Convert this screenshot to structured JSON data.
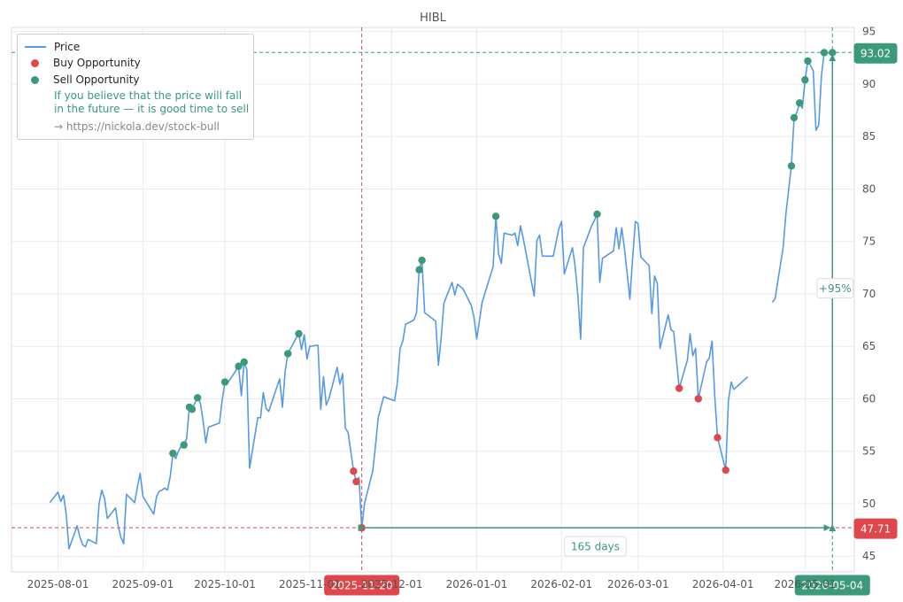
{
  "chart_data": {
    "type": "line",
    "title": "HIBL",
    "xlabel": "",
    "ylabel": "",
    "ylim": [
      43.5,
      95.4
    ],
    "xlim": [
      "2025-07-15",
      "2026-05-19"
    ],
    "y_ticks": [
      45,
      50,
      55,
      60,
      65,
      70,
      75,
      80,
      85,
      90,
      95
    ],
    "x_ticks": [
      "2025-08-01",
      "2025-09-01",
      "2025-10-01",
      "2025-11-01",
      "2025-12-01",
      "2026-01-01",
      "2026-02-01",
      "2026-03-01",
      "2026-04-01",
      "2026-05-01"
    ],
    "grid": true,
    "legend_position": "top-left",
    "series": [
      {
        "name": "Price",
        "color": "#5599e8",
        "points": [
          [
            "2025-07-29",
            50.1
          ],
          [
            "2025-08-01",
            51.1
          ],
          [
            "2025-08-02",
            50.2
          ],
          [
            "2025-08-03",
            50.8
          ],
          [
            "2025-08-04",
            49.0
          ],
          [
            "2025-08-05",
            45.7
          ],
          [
            "2025-08-08",
            47.9
          ],
          [
            "2025-08-09",
            46.8
          ],
          [
            "2025-08-10",
            46.1
          ],
          [
            "2025-08-11",
            45.9
          ],
          [
            "2025-08-12",
            46.6
          ],
          [
            "2025-08-15",
            46.2
          ],
          [
            "2025-08-16",
            50.0
          ],
          [
            "2025-08-17",
            51.3
          ],
          [
            "2025-08-18",
            50.5
          ],
          [
            "2025-08-19",
            48.6
          ],
          [
            "2025-08-22",
            49.6
          ],
          [
            "2025-08-23",
            47.9
          ],
          [
            "2025-08-24",
            46.8
          ],
          [
            "2025-08-25",
            46.2
          ],
          [
            "2025-08-26",
            50.9
          ],
          [
            "2025-08-29",
            50.1
          ],
          [
            "2025-08-30",
            51.6
          ],
          [
            "2025-08-31",
            52.9
          ],
          [
            "2025-09-01",
            50.7
          ],
          [
            "2025-09-05",
            49.0
          ],
          [
            "2025-09-06",
            50.7
          ],
          [
            "2025-09-07",
            51.2
          ],
          [
            "2025-09-08",
            51.3
          ],
          [
            "2025-09-09",
            51.5
          ],
          [
            "2025-09-10",
            51.3
          ],
          [
            "2025-09-11",
            52.6
          ],
          [
            "2025-09-12",
            54.8
          ],
          [
            "2025-09-13",
            54.3
          ],
          [
            "2025-09-14",
            55.0
          ],
          [
            "2025-09-15",
            55.5
          ],
          [
            "2025-09-16",
            55.6
          ],
          [
            "2025-09-17",
            56.2
          ],
          [
            "2025-09-18",
            59.2
          ],
          [
            "2025-09-19",
            59.0
          ],
          [
            "2025-09-20",
            59.6
          ],
          [
            "2025-09-21",
            60.1
          ],
          [
            "2025-09-22",
            59.6
          ],
          [
            "2025-09-23",
            57.9
          ],
          [
            "2025-09-24",
            55.8
          ],
          [
            "2025-09-25",
            57.3
          ],
          [
            "2025-09-29",
            57.7
          ],
          [
            "2025-09-30",
            59.9
          ],
          [
            "2025-10-01",
            61.6
          ],
          [
            "2025-10-02",
            61.5
          ],
          [
            "2025-10-05",
            62.7
          ],
          [
            "2025-10-06",
            63.1
          ],
          [
            "2025-10-07",
            60.3
          ],
          [
            "2025-10-08",
            63.5
          ],
          [
            "2025-10-09",
            62.8
          ],
          [
            "2025-10-10",
            53.4
          ],
          [
            "2025-10-13",
            58.2
          ],
          [
            "2025-10-14",
            58.2
          ],
          [
            "2025-10-15",
            60.6
          ],
          [
            "2025-10-16",
            59.1
          ],
          [
            "2025-10-17",
            58.8
          ],
          [
            "2025-10-21",
            61.9
          ],
          [
            "2025-10-22",
            59.2
          ],
          [
            "2025-10-23",
            62.6
          ],
          [
            "2025-10-24",
            64.3
          ],
          [
            "2025-10-27",
            65.8
          ],
          [
            "2025-10-28",
            66.2
          ],
          [
            "2025-10-29",
            64.7
          ],
          [
            "2025-10-30",
            66.1
          ],
          [
            "2025-10-31",
            63.8
          ],
          [
            "2025-11-01",
            65.0
          ],
          [
            "2025-11-04",
            65.1
          ],
          [
            "2025-11-05",
            59.0
          ],
          [
            "2025-11-06",
            62.1
          ],
          [
            "2025-11-07",
            59.4
          ],
          [
            "2025-11-08",
            60.0
          ],
          [
            "2025-11-11",
            63.0
          ],
          [
            "2025-11-12",
            61.4
          ],
          [
            "2025-11-13",
            62.4
          ],
          [
            "2025-11-14",
            57.2
          ],
          [
            "2025-11-15",
            56.8
          ],
          [
            "2025-11-17",
            53.1
          ],
          [
            "2025-11-18",
            52.1
          ],
          [
            "2025-11-19",
            52.5
          ],
          [
            "2025-11-20",
            47.7
          ],
          [
            "2025-11-21",
            50.0
          ],
          [
            "2025-11-24",
            53.1
          ],
          [
            "2025-11-25",
            55.5
          ],
          [
            "2025-11-26",
            58.2
          ],
          [
            "2025-11-28",
            60.2
          ],
          [
            "2025-12-02",
            59.8
          ],
          [
            "2025-12-03",
            61.5
          ],
          [
            "2025-12-04",
            64.8
          ],
          [
            "2025-12-05",
            65.5
          ],
          [
            "2025-12-06",
            67.1
          ],
          [
            "2025-12-09",
            67.5
          ],
          [
            "2025-12-10",
            68.2
          ],
          [
            "2025-12-11",
            72.3
          ],
          [
            "2025-12-12",
            73.2
          ],
          [
            "2025-12-13",
            68.2
          ],
          [
            "2025-12-17",
            67.4
          ],
          [
            "2025-12-18",
            63.2
          ],
          [
            "2025-12-19",
            65.8
          ],
          [
            "2025-12-20",
            69.1
          ],
          [
            "2025-12-23",
            71.1
          ],
          [
            "2025-12-24",
            69.9
          ],
          [
            "2025-12-25",
            70.9
          ],
          [
            "2025-12-27",
            70.5
          ],
          [
            "2025-12-30",
            68.9
          ],
          [
            "2025-12-31",
            67.8
          ],
          [
            "2026-01-01",
            65.7
          ],
          [
            "2026-01-02",
            67.4
          ],
          [
            "2026-01-03",
            69.2
          ],
          [
            "2026-01-07",
            72.6
          ],
          [
            "2026-01-08",
            77.4
          ],
          [
            "2026-01-09",
            73.8
          ],
          [
            "2026-01-10",
            72.9
          ],
          [
            "2026-01-11",
            75.8
          ],
          [
            "2026-01-14",
            75.6
          ],
          [
            "2026-01-15",
            75.8
          ],
          [
            "2026-01-16",
            74.6
          ],
          [
            "2026-01-17",
            76.5
          ],
          [
            "2026-01-18",
            75.3
          ],
          [
            "2026-01-22",
            69.8
          ],
          [
            "2026-01-23",
            75.1
          ],
          [
            "2026-01-24",
            75.6
          ],
          [
            "2026-01-25",
            73.6
          ],
          [
            "2026-01-29",
            73.6
          ],
          [
            "2026-01-31",
            76.2
          ],
          [
            "2026-02-01",
            76.9
          ],
          [
            "2026-02-02",
            71.9
          ],
          [
            "2026-02-05",
            74.4
          ],
          [
            "2026-02-06",
            72.6
          ],
          [
            "2026-02-07",
            69.8
          ],
          [
            "2026-02-08",
            65.7
          ],
          [
            "2026-02-09",
            74.4
          ],
          [
            "2026-02-11",
            75.8
          ],
          [
            "2026-02-12",
            76.5
          ],
          [
            "2026-02-13",
            77.0
          ],
          [
            "2026-02-14",
            77.6
          ],
          [
            "2026-02-15",
            71.1
          ],
          [
            "2026-02-16",
            73.4
          ],
          [
            "2026-02-20",
            74.1
          ],
          [
            "2026-02-21",
            76.3
          ],
          [
            "2026-02-22",
            74.3
          ],
          [
            "2026-02-23",
            76.3
          ],
          [
            "2026-02-24",
            74.3
          ],
          [
            "2026-02-26",
            69.5
          ],
          [
            "2026-02-27",
            73.4
          ],
          [
            "2026-02-28",
            76.9
          ],
          [
            "2026-03-01",
            76.7
          ],
          [
            "2026-03-02",
            73.5
          ],
          [
            "2026-03-05",
            72.7
          ],
          [
            "2026-03-06",
            68.1
          ],
          [
            "2026-03-07",
            71.7
          ],
          [
            "2026-03-08",
            71.0
          ],
          [
            "2026-03-09",
            64.8
          ],
          [
            "2026-03-12",
            68.0
          ],
          [
            "2026-03-13",
            66.6
          ],
          [
            "2026-03-14",
            66.4
          ],
          [
            "2026-03-16",
            61.0
          ],
          [
            "2026-03-19",
            63.7
          ],
          [
            "2026-03-20",
            66.2
          ],
          [
            "2026-03-21",
            64.1
          ],
          [
            "2026-03-22",
            64.8
          ],
          [
            "2026-03-23",
            60.0
          ],
          [
            "2026-03-26",
            63.5
          ],
          [
            "2026-03-27",
            63.9
          ],
          [
            "2026-03-28",
            65.5
          ],
          [
            "2026-03-29",
            60.2
          ],
          [
            "2026-03-30",
            56.3
          ],
          [
            "2026-04-02",
            53.2
          ],
          [
            "2026-04-03",
            59.8
          ],
          [
            "2026-04-04",
            61.6
          ],
          [
            "2026-04-05",
            60.9
          ],
          [
            "2026-04-10",
            62.1
          ],
          [
            null,
            null
          ],
          [
            "2026-04-19",
            69.2
          ],
          [
            "2026-04-20",
            69.5
          ],
          [
            "2026-04-23",
            74.4
          ],
          [
            "2026-04-24",
            77.6
          ],
          [
            "2026-04-26",
            82.2
          ],
          [
            "2026-04-27",
            86.8
          ],
          [
            "2026-04-28",
            87.3
          ],
          [
            "2026-04-29",
            88.2
          ],
          [
            "2026-04-30",
            87.7
          ],
          [
            "2026-05-01",
            90.4
          ],
          [
            "2026-05-02",
            92.2
          ],
          [
            "2026-05-04",
            91.3
          ],
          [
            "2026-05-05",
            85.6
          ],
          [
            "2026-05-06",
            86.1
          ],
          [
            "2026-05-07",
            90.8
          ],
          [
            "2026-05-08",
            93.0
          ],
          [
            "2026-05-11",
            93.0
          ]
        ]
      },
      {
        "name": "Buy Opportunity",
        "color": "#e0474c",
        "points": [
          [
            "2025-11-17",
            53.1
          ],
          [
            "2025-11-18",
            52.1
          ],
          [
            "2025-11-20",
            47.7
          ],
          [
            "2026-03-16",
            61.0
          ],
          [
            "2026-03-23",
            60.0
          ],
          [
            "2026-03-30",
            56.3
          ],
          [
            "2026-04-02",
            53.2
          ]
        ]
      },
      {
        "name": "Sell Opportunity",
        "color": "#3a9a7a",
        "points": [
          [
            "2025-09-12",
            54.8
          ],
          [
            "2025-09-16",
            55.6
          ],
          [
            "2025-09-18",
            59.2
          ],
          [
            "2025-09-19",
            59.0
          ],
          [
            "2025-09-21",
            60.1
          ],
          [
            "2025-10-01",
            61.6
          ],
          [
            "2025-10-06",
            63.1
          ],
          [
            "2025-10-08",
            63.5
          ],
          [
            "2025-10-24",
            64.3
          ],
          [
            "2025-10-28",
            66.2
          ],
          [
            "2025-12-11",
            72.3
          ],
          [
            "2025-12-12",
            73.2
          ],
          [
            "2026-01-08",
            77.4
          ],
          [
            "2026-02-14",
            77.6
          ],
          [
            "2026-04-26",
            82.2
          ],
          [
            "2026-04-27",
            86.8
          ],
          [
            "2026-04-29",
            88.2
          ],
          [
            "2026-05-01",
            90.4
          ],
          [
            "2026-05-02",
            92.2
          ],
          [
            "2026-05-08",
            93.0
          ],
          [
            "2026-05-11",
            93.0
          ]
        ]
      }
    ],
    "annotations": {
      "buy_date_label": "2025-11-20",
      "sell_date_label": "2026-05-04",
      "low_price_label": "47.71",
      "high_price_label": "93.02",
      "low_date": "2025-11-20",
      "high_date": "2026-05-11",
      "low_value": 47.71,
      "high_value": 93.02,
      "duration_label": "165 days",
      "gain_label": "+95%"
    }
  },
  "legend": {
    "price_label": "Price",
    "buy_label": "Buy Opportunity",
    "sell_label": "Sell Opportunity",
    "note_line1": "If you believe that the price will fall",
    "note_line2": "in the future — it is good time to sell",
    "url": "→ https://nickola.dev/stock-bull"
  },
  "colors": {
    "price": "#5599e8",
    "buy": "#e0474c",
    "sell": "#3a9a7a",
    "grid": "#ebebeb",
    "axis_text": "#555555"
  }
}
